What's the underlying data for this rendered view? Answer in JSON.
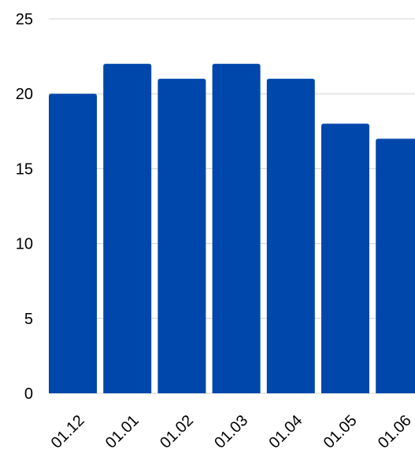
{
  "chart_data": {
    "type": "bar",
    "categories": [
      "01.12",
      "01.01",
      "01.02",
      "01.03",
      "01.04",
      "01.05",
      "01.06"
    ],
    "values": [
      20,
      22,
      21,
      22,
      21,
      18,
      17
    ],
    "ylim": [
      0,
      25
    ],
    "yticks": [
      0,
      5,
      10,
      15,
      20,
      25
    ],
    "grid": true,
    "bar_color": "#0047ab",
    "title": "",
    "xlabel": "",
    "ylabel": ""
  }
}
